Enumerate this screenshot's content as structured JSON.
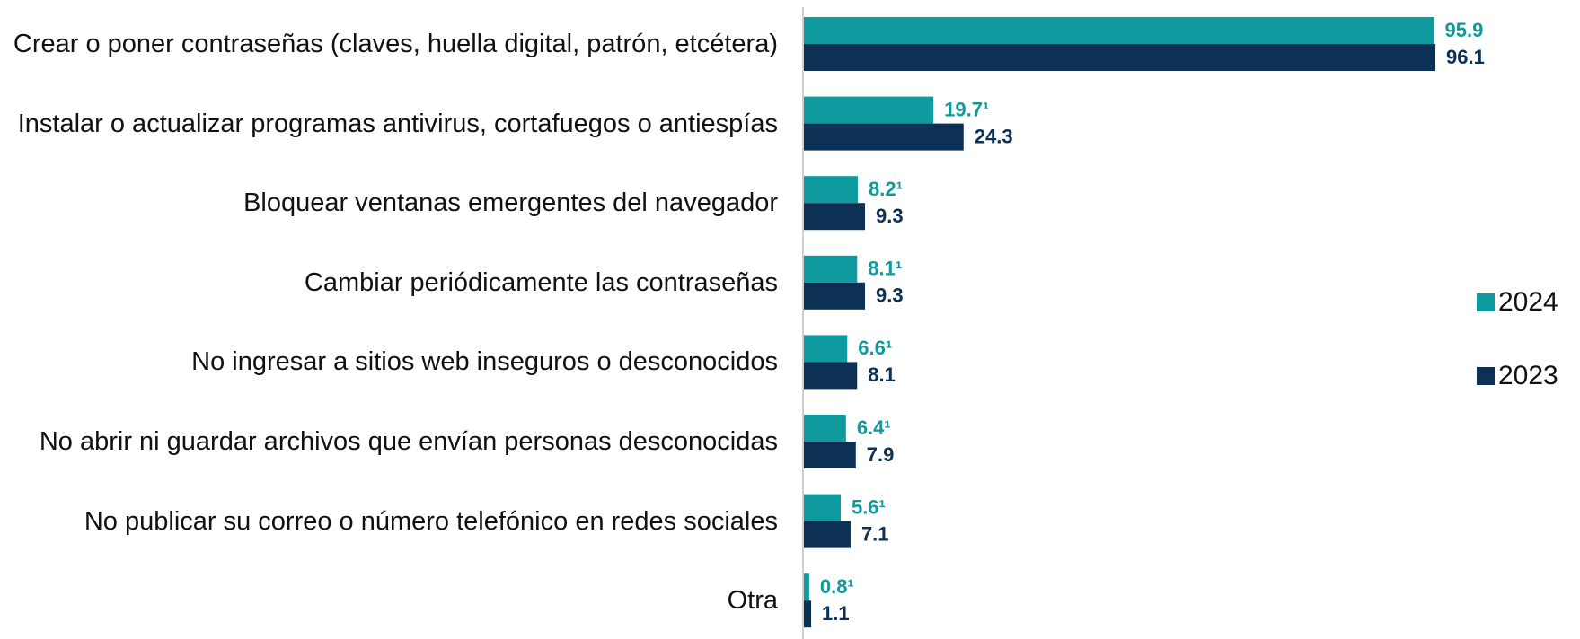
{
  "chart_data": {
    "type": "hbar",
    "categories": [
      "Crear o poner contraseñas (claves, huella digital, patrón, etcétera)",
      "Instalar o actualizar programas antivirus, cortafuegos o antiespías",
      "Bloquear ventanas emergentes del navegador",
      "Cambiar periódicamente las contraseñas",
      "No ingresar a sitios web inseguros o desconocidos",
      "No abrir ni guardar archivos que envían personas desconocidas",
      "No publicar su correo o número telefónico en redes sociales",
      "Otra"
    ],
    "series": [
      {
        "name": "2024",
        "color": "#0e9a9e",
        "values": [
          95.9,
          19.7,
          8.2,
          8.1,
          6.6,
          6.4,
          5.6,
          0.8
        ],
        "value_labels": [
          "95.9",
          "19.7¹",
          "8.2¹",
          "8.1¹",
          "6.6¹",
          "6.4¹",
          "5.6¹",
          "0.8¹"
        ]
      },
      {
        "name": "2023",
        "color": "#0d3055",
        "values": [
          96.1,
          24.3,
          9.3,
          9.3,
          8.1,
          7.9,
          7.1,
          1.1
        ]
      }
    ],
    "legend": "right"
  }
}
